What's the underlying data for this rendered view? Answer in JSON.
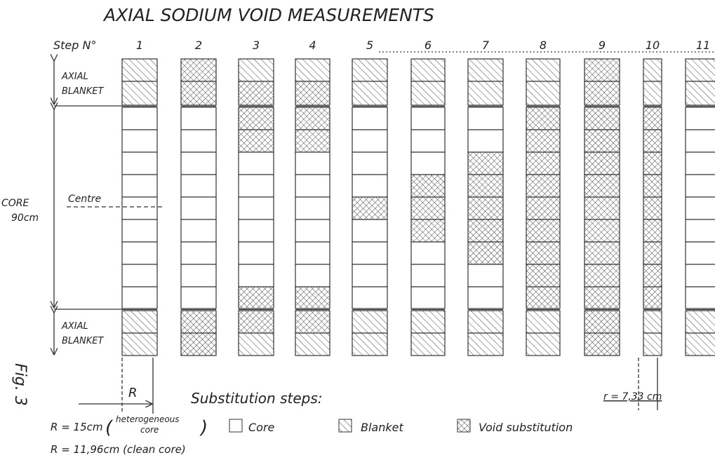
{
  "title": "AXIAL SODIUM VOID MEASUREMENTS",
  "step_label": "Step N°",
  "steps": [
    "1",
    "2",
    "3",
    "4",
    "5",
    "6",
    "7",
    "8",
    "9",
    "10",
    "11"
  ],
  "top_blanket": [
    "AXIAL",
    "BLANKET"
  ],
  "core_label": [
    "CORE",
    "90cm"
  ],
  "centre": "Centre",
  "bottom_blanket": [
    "AXIAL",
    "BLANKET"
  ],
  "figure": "Fig. 3",
  "radius_label": "R",
  "substitution_title": "Substitution steps:",
  "small_radius": "r = 7,33 cm",
  "notes": {
    "large": "R = 15cm",
    "large_detail": [
      "heterogeneous",
      "core"
    ],
    "clean": "R = 11,96cm (clean core)"
  },
  "legend": [
    "Core",
    "Blanket",
    "Void substitution"
  ]
}
